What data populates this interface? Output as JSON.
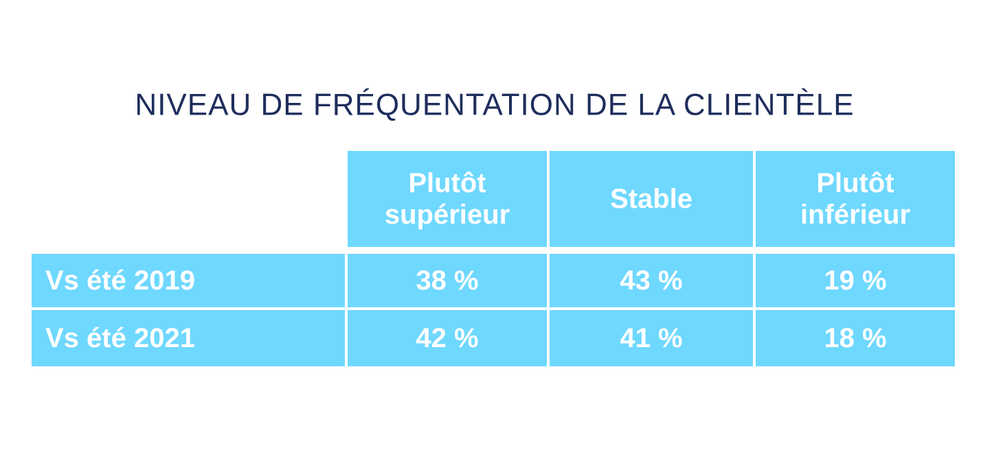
{
  "chart_data": {
    "type": "table",
    "title": "NIVEAU DE FRÉQUENTATION  DE LA CLIENTÈLE",
    "columns": [
      "Plutôt\nsupérieur",
      "Stable",
      "Plutôt\ninférieur"
    ],
    "rows": [
      {
        "label": "Vs été 2019",
        "values": [
          "38 %",
          "43 %",
          "19 %"
        ]
      },
      {
        "label": "Vs été 2021",
        "values": [
          "42 %",
          "41 %",
          "18 %"
        ]
      }
    ]
  },
  "colors": {
    "title": "#1f2d5c",
    "cell_background": "#6fd8ff",
    "cell_text": "#ffffff"
  }
}
